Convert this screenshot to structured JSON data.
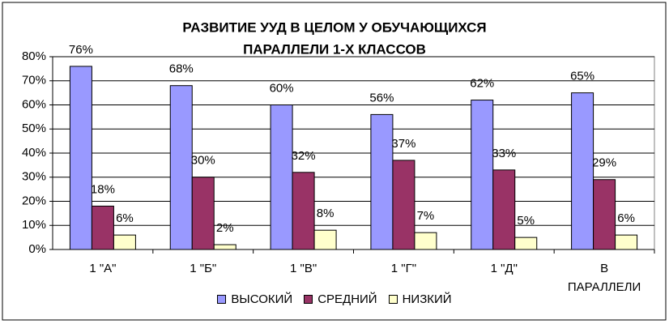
{
  "chart_data": {
    "type": "bar",
    "title": [
      "РАЗВИТИЕ УУД В ЦЕЛОМ У ОБУЧАЮЩИХСЯ",
      "ПАРАЛЛЕЛИ 1-Х КЛАССОВ"
    ],
    "categories": [
      "1 \"А\"",
      "1 \"Б\"",
      "1 \"В\"",
      "1 \"Г\"",
      "1 \"Д\"",
      "В ПАРАЛЛЕЛИ"
    ],
    "series": [
      {
        "name": "ВЫСОКИЙ",
        "color": "#9999ff",
        "values": [
          76,
          68,
          60,
          56,
          62,
          65
        ],
        "value_labels": [
          "76%",
          "68%",
          "60%",
          "56%",
          "62%",
          "65%"
        ]
      },
      {
        "name": "СРЕДНИЙ",
        "color": "#993366",
        "values": [
          18,
          30,
          32,
          37,
          33,
          29
        ],
        "value_labels": [
          "18%",
          "30%",
          "32%",
          "37%",
          "33%",
          "29%"
        ]
      },
      {
        "name": "НИЗКИЙ",
        "color": "#ffffcc",
        "values": [
          6,
          2,
          8,
          7,
          5,
          6
        ],
        "value_labels": [
          "6%",
          "2%",
          "8%",
          "7%",
          "5%",
          "6%"
        ]
      }
    ],
    "ylim": [
      0,
      80
    ],
    "yticks": [
      {
        "value": 0,
        "label": "0%"
      },
      {
        "value": 10,
        "label": "10%"
      },
      {
        "value": 20,
        "label": "20%"
      },
      {
        "value": 30,
        "label": "30%"
      },
      {
        "value": 40,
        "label": "40%"
      },
      {
        "value": 50,
        "label": "50%"
      },
      {
        "value": 60,
        "label": "60%"
      },
      {
        "value": 70,
        "label": "70%"
      },
      {
        "value": 80,
        "label": "80%"
      }
    ],
    "grid": true,
    "legend": "bottom"
  }
}
